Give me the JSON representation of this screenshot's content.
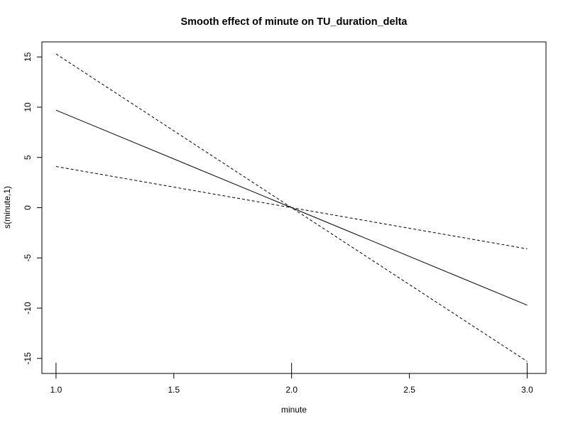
{
  "chart_data": {
    "type": "line",
    "title": "Smooth effect of minute on TU_duration_delta",
    "xlabel": "minute",
    "ylabel": "s(minute,1)",
    "xlim": [
      0.94,
      3.08
    ],
    "ylim": [
      -16.5,
      16.5
    ],
    "xticks": [
      1.0,
      1.5,
      2.0,
      2.5,
      3.0
    ],
    "xtick_labels": [
      "1.0",
      "1.5",
      "2.0",
      "2.5",
      "3.0"
    ],
    "yticks": [
      -15,
      -10,
      -5,
      0,
      5,
      10,
      15
    ],
    "ytick_labels": [
      "-15",
      "-10",
      "-5",
      "0",
      "5",
      "10",
      "15"
    ],
    "grid": false,
    "series": [
      {
        "style": "solid",
        "x": [
          1.0,
          2.0,
          3.0
        ],
        "y": [
          9.7,
          0.0,
          -9.7
        ]
      },
      {
        "style": "dashed",
        "x": [
          1.0,
          2.0,
          3.0
        ],
        "y": [
          15.3,
          0.0,
          -15.3
        ]
      },
      {
        "style": "dashed",
        "x": [
          1.0,
          2.0,
          3.0
        ],
        "y": [
          4.1,
          0.0,
          -4.1
        ]
      }
    ],
    "rug_x": [
      1.0,
      2.0,
      3.0
    ]
  }
}
